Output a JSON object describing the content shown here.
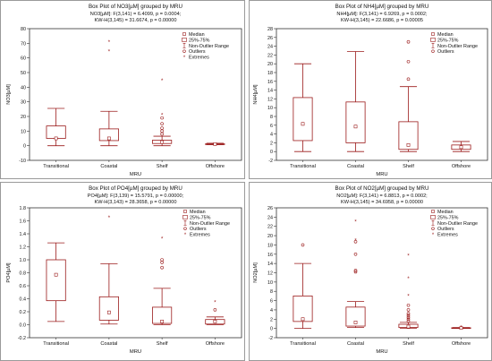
{
  "chart_data": [
    {
      "type": "box",
      "title": "Box Plot of NO3[µM] grouped by  MRU",
      "subtitle1": "NO3[µM]:  F(3,141) = 6.4099, p = 0.0004;",
      "subtitle2": "KW-H(3,145) = 31.6674, p = 0.00000",
      "xlabel": "MRU",
      "ylabel": "NO3[µM]",
      "ylim": [
        -10,
        80
      ],
      "yticks": [
        -10,
        0,
        10,
        20,
        30,
        40,
        50,
        60,
        70,
        80
      ],
      "legend": [
        "Median",
        "25%-75%",
        "Non-Outlier Range",
        "Outliers",
        "Extremes"
      ],
      "categories": [
        "Transitional",
        "Coastal",
        "Shelf",
        "Offshore"
      ],
      "boxes": [
        {
          "min": 0,
          "q1": 5,
          "median": 5,
          "q3": 13.5,
          "max": 25.5,
          "outliers": [],
          "extremes": []
        },
        {
          "min": 0,
          "q1": 3.5,
          "median": 5,
          "q3": 11.5,
          "max": 23.5,
          "outliers": [],
          "extremes": [
            71,
            64.5
          ]
        },
        {
          "min": 0,
          "q1": 1.5,
          "median": 2.5,
          "q3": 3.8,
          "max": 6.5,
          "outliers": [
            8,
            10,
            12,
            15,
            19
          ],
          "extremes": [
            44.5,
            21
          ]
        },
        {
          "min": 0.7,
          "q1": 0.9,
          "median": 1.1,
          "q3": 1.3,
          "max": 1.7,
          "outliers": [],
          "extremes": []
        }
      ]
    },
    {
      "type": "box",
      "title": "Box Plot of NH4[µM] grouped by  MRU",
      "subtitle1": "NH4[µM]:  F(3,141) = 6.9269, p = 0.0002;",
      "subtitle2": "KW-H(3,145) = 22.6686, p = 0.00005",
      "xlabel": "MRU",
      "ylabel": "NH4[µM]",
      "ylim": [
        -2,
        28
      ],
      "yticks": [
        -2,
        0,
        2,
        4,
        6,
        8,
        10,
        12,
        14,
        16,
        18,
        20,
        22,
        24,
        26,
        28
      ],
      "legend": [
        "Median",
        "25%-75%",
        "Non-Outlier Range",
        "Outliers"
      ],
      "categories": [
        "Transitional",
        "Coastal",
        "Shelf",
        "Offshore"
      ],
      "boxes": [
        {
          "min": 0,
          "q1": 2.5,
          "median": 6.3,
          "q3": 12.3,
          "max": 20,
          "outliers": [],
          "extremes": []
        },
        {
          "min": 0,
          "q1": 2,
          "median": 5.7,
          "q3": 11.3,
          "max": 22.8,
          "outliers": [],
          "extremes": []
        },
        {
          "min": 0,
          "q1": 0.5,
          "median": 1.5,
          "q3": 6.8,
          "max": 14.8,
          "outliers": [
            16.5,
            20.5,
            25
          ],
          "extremes": []
        },
        {
          "min": 0,
          "q1": 0.5,
          "median": 1,
          "q3": 1.5,
          "max": 2.3,
          "outliers": [],
          "extremes": []
        }
      ]
    },
    {
      "type": "box",
      "title": "Box Plot of PO4[µM] grouped by  MRU",
      "subtitle1": "PO4[µM]:  F(3,139) = 15.5791, p = 0.00000;",
      "subtitle2": "KW-H(3,143) = 28.3658, p = 0.00000",
      "xlabel": "MRU",
      "ylabel": "PO4[µM]",
      "ylim": [
        -0.2,
        1.8
      ],
      "yticks": [
        -0.2,
        0.0,
        0.2,
        0.4,
        0.6,
        0.8,
        1.0,
        1.2,
        1.4,
        1.6,
        1.8
      ],
      "legend": [
        "Median",
        "25%-75%",
        "Non-Outlier Range",
        "Outliers",
        "Extremes"
      ],
      "categories": [
        "Transitional",
        "Coastal",
        "Shelf",
        "Offshore"
      ],
      "boxes": [
        {
          "min": 0.05,
          "q1": 0.37,
          "median": 0.77,
          "q3": 1.0,
          "max": 1.26,
          "outliers": [],
          "extremes": []
        },
        {
          "min": 0.01,
          "q1": 0.07,
          "median": 0.19,
          "q3": 0.43,
          "max": 0.94,
          "outliers": [],
          "extremes": [
            1.65
          ]
        },
        {
          "min": 0.0,
          "q1": 0.02,
          "median": 0.05,
          "q3": 0.27,
          "max": 0.56,
          "outliers": [
            0.88,
            0.96,
            1.0
          ],
          "extremes": [
            1.33
          ]
        },
        {
          "min": 0.0,
          "q1": 0.01,
          "median": 0.05,
          "q3": 0.08,
          "max": 0.12,
          "outliers": [
            0.23
          ],
          "extremes": [
            0.35
          ]
        }
      ]
    },
    {
      "type": "box",
      "title": "Box Plot of NO2[µM] grouped by  MRU",
      "subtitle1": "NO2[µM]:  F(3,141) = 6.8813, p = 0.0002;",
      "subtitle2": "KW-H(3,145) = 34.6958, p = 0.00000",
      "xlabel": "MRU",
      "ylabel": "NO2[µM]",
      "ylim": [
        -2,
        26
      ],
      "yticks": [
        -2,
        0,
        2,
        4,
        6,
        8,
        10,
        12,
        14,
        16,
        18,
        20,
        22,
        24,
        26
      ],
      "legend": [
        "Median",
        "25%-75%",
        "Non-Outlier Range",
        "Outliers",
        "Extremes"
      ],
      "categories": [
        "Transitional",
        "Coastal",
        "Shelf",
        "Offshore"
      ],
      "boxes": [
        {
          "min": 0,
          "q1": 1.5,
          "median": 2,
          "q3": 7,
          "max": 14,
          "outliers": [
            18
          ],
          "extremes": []
        },
        {
          "min": 0.2,
          "q1": 0.5,
          "median": 1.3,
          "q3": 4.6,
          "max": 5.8,
          "outliers": [
            12.2,
            12.5,
            16,
            18.7
          ],
          "extremes": [
            23,
            19
          ]
        },
        {
          "min": 0,
          "q1": 0.2,
          "median": 0.4,
          "q3": 0.9,
          "max": 1.3,
          "outliers": [
            1.6,
            2,
            2.4,
            2.8,
            3.2,
            4,
            5
          ],
          "extremes": [
            15.7,
            10.8,
            7
          ]
        },
        {
          "min": 0,
          "q1": 0.05,
          "median": 0.1,
          "q3": 0.15,
          "max": 0.2,
          "outliers": [],
          "extremes": [
            0.3
          ]
        }
      ]
    }
  ],
  "colors": {
    "box": "#9b1b1b",
    "background": "#ffffff",
    "frame": "#9a9a9a"
  }
}
